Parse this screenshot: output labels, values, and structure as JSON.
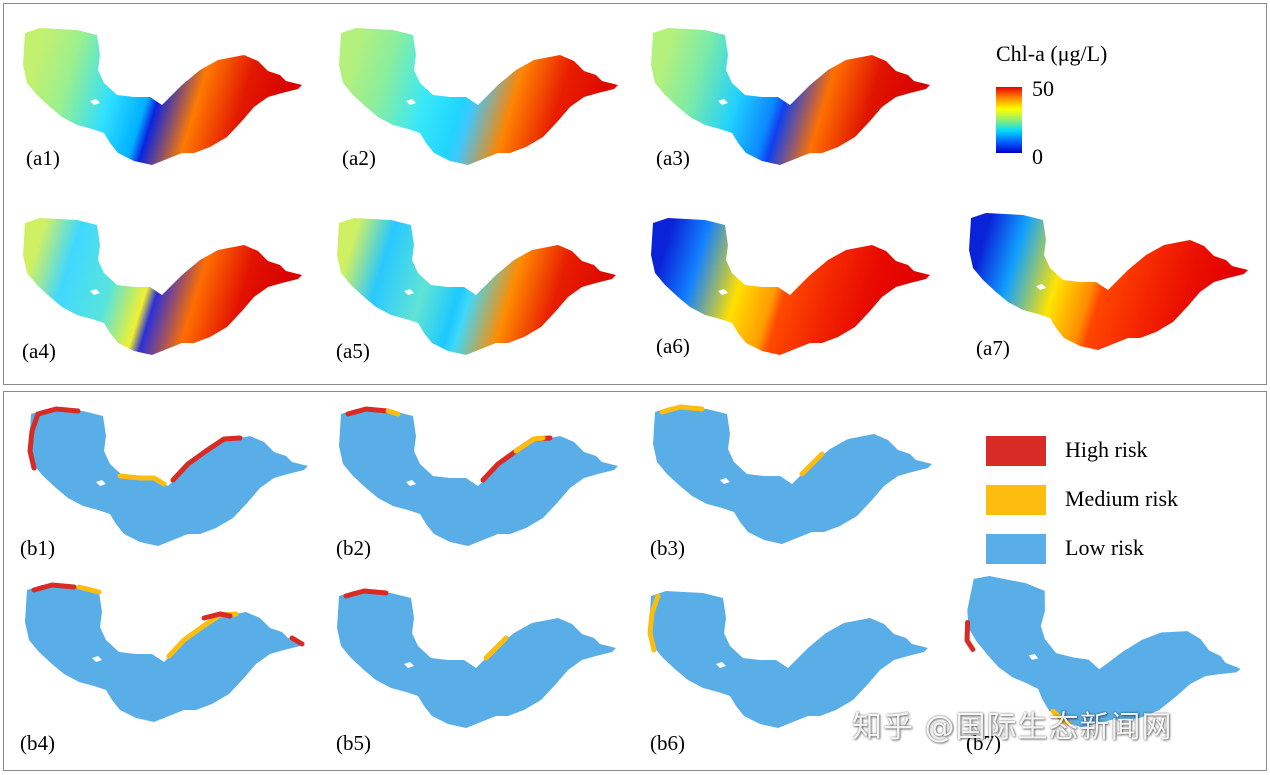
{
  "colorbar": {
    "title": "Chl-a (μg/L)",
    "max_label": "50",
    "min_label": "0",
    "colors": [
      "#0000c8",
      "#0060ff",
      "#00d8ff",
      "#90f070",
      "#ffff00",
      "#ff8a00",
      "#e80000"
    ]
  },
  "risk_legend": {
    "items": [
      {
        "label": "High risk",
        "color": "#d92b25"
      },
      {
        "label": "Medium risk",
        "color": "#fcbd0f"
      },
      {
        "label": "Low risk",
        "color": "#59aee8"
      }
    ]
  },
  "chl_maps": [
    {
      "label": "(a1)",
      "stops": [
        "#c4f070",
        "#9cf08c",
        "#30e0ff",
        "#00b0ff",
        "#0a24e0",
        "#ff7a00",
        "#e21800",
        "#d80000"
      ]
    },
    {
      "label": "(a2)",
      "stops": [
        "#b4f07c",
        "#8cee9c",
        "#38e8f8",
        "#20d4ff",
        "#3ec8ff",
        "#ff8400",
        "#e81e00",
        "#dc0800"
      ]
    },
    {
      "label": "(a3)",
      "stops": [
        "#b4f07c",
        "#80eca4",
        "#20d0ff",
        "#0c88ff",
        "#1040f0",
        "#ff7000",
        "#e01400",
        "#d80000"
      ]
    },
    {
      "label": "(a4)",
      "stops": [
        "#d0f064",
        "#40d8ff",
        "#58e4dc",
        "#f0f030",
        "#2c30d8",
        "#ff6e00",
        "#e21200",
        "#d80000"
      ]
    },
    {
      "label": "(a5)",
      "stops": [
        "#d0f064",
        "#28c8ff",
        "#60e4d4",
        "#1cc8ff",
        "#40d8f8",
        "#ff8c00",
        "#e81e00",
        "#dc0800"
      ]
    },
    {
      "label": "(a6)",
      "stops": [
        "#0a22d8",
        "#1280ff",
        "#ffe000",
        "#ff9c00",
        "#ff4a00",
        "#f42800",
        "#e80a00",
        "#e00000"
      ]
    },
    {
      "label": "(a7)",
      "stops": [
        "#0a22d8",
        "#10a0ff",
        "#ffe400",
        "#ff8c00",
        "#ff4600",
        "#f62a00",
        "#ea0e00",
        "#e20000"
      ]
    }
  ],
  "risk_maps": [
    {
      "label": "(b1)",
      "segments": [
        {
          "path": "west",
          "risk": "high"
        },
        {
          "path": "north",
          "risk": "high"
        },
        {
          "path": "mid",
          "risk": "medium"
        },
        {
          "path": "east",
          "risk": "high"
        }
      ]
    },
    {
      "label": "(b2)",
      "segments": [
        {
          "path": "north",
          "risk": "high"
        },
        {
          "path": "north2",
          "risk": "medium"
        },
        {
          "path": "east",
          "risk": "high"
        },
        {
          "path": "east2",
          "risk": "medium"
        }
      ]
    },
    {
      "label": "(b3)",
      "segments": [
        {
          "path": "north",
          "risk": "medium"
        },
        {
          "path": "east3",
          "risk": "medium"
        }
      ]
    },
    {
      "label": "(b4)",
      "segments": [
        {
          "path": "north",
          "risk": "high"
        },
        {
          "path": "north3",
          "risk": "medium"
        },
        {
          "path": "east",
          "risk": "medium"
        },
        {
          "path": "east4",
          "risk": "high"
        },
        {
          "path": "tip",
          "risk": "high"
        }
      ]
    },
    {
      "label": "(b5)",
      "segments": [
        {
          "path": "north",
          "risk": "high"
        },
        {
          "path": "east3",
          "risk": "medium"
        }
      ]
    },
    {
      "label": "(b6)",
      "segments": [
        {
          "path": "west",
          "risk": "medium"
        }
      ]
    },
    {
      "label": "(b7)",
      "segments": [
        {
          "path": "west7",
          "risk": "high"
        },
        {
          "path": "south7",
          "risk": "medium"
        }
      ]
    }
  ],
  "watermark": "知乎 @国际生态新闻网"
}
